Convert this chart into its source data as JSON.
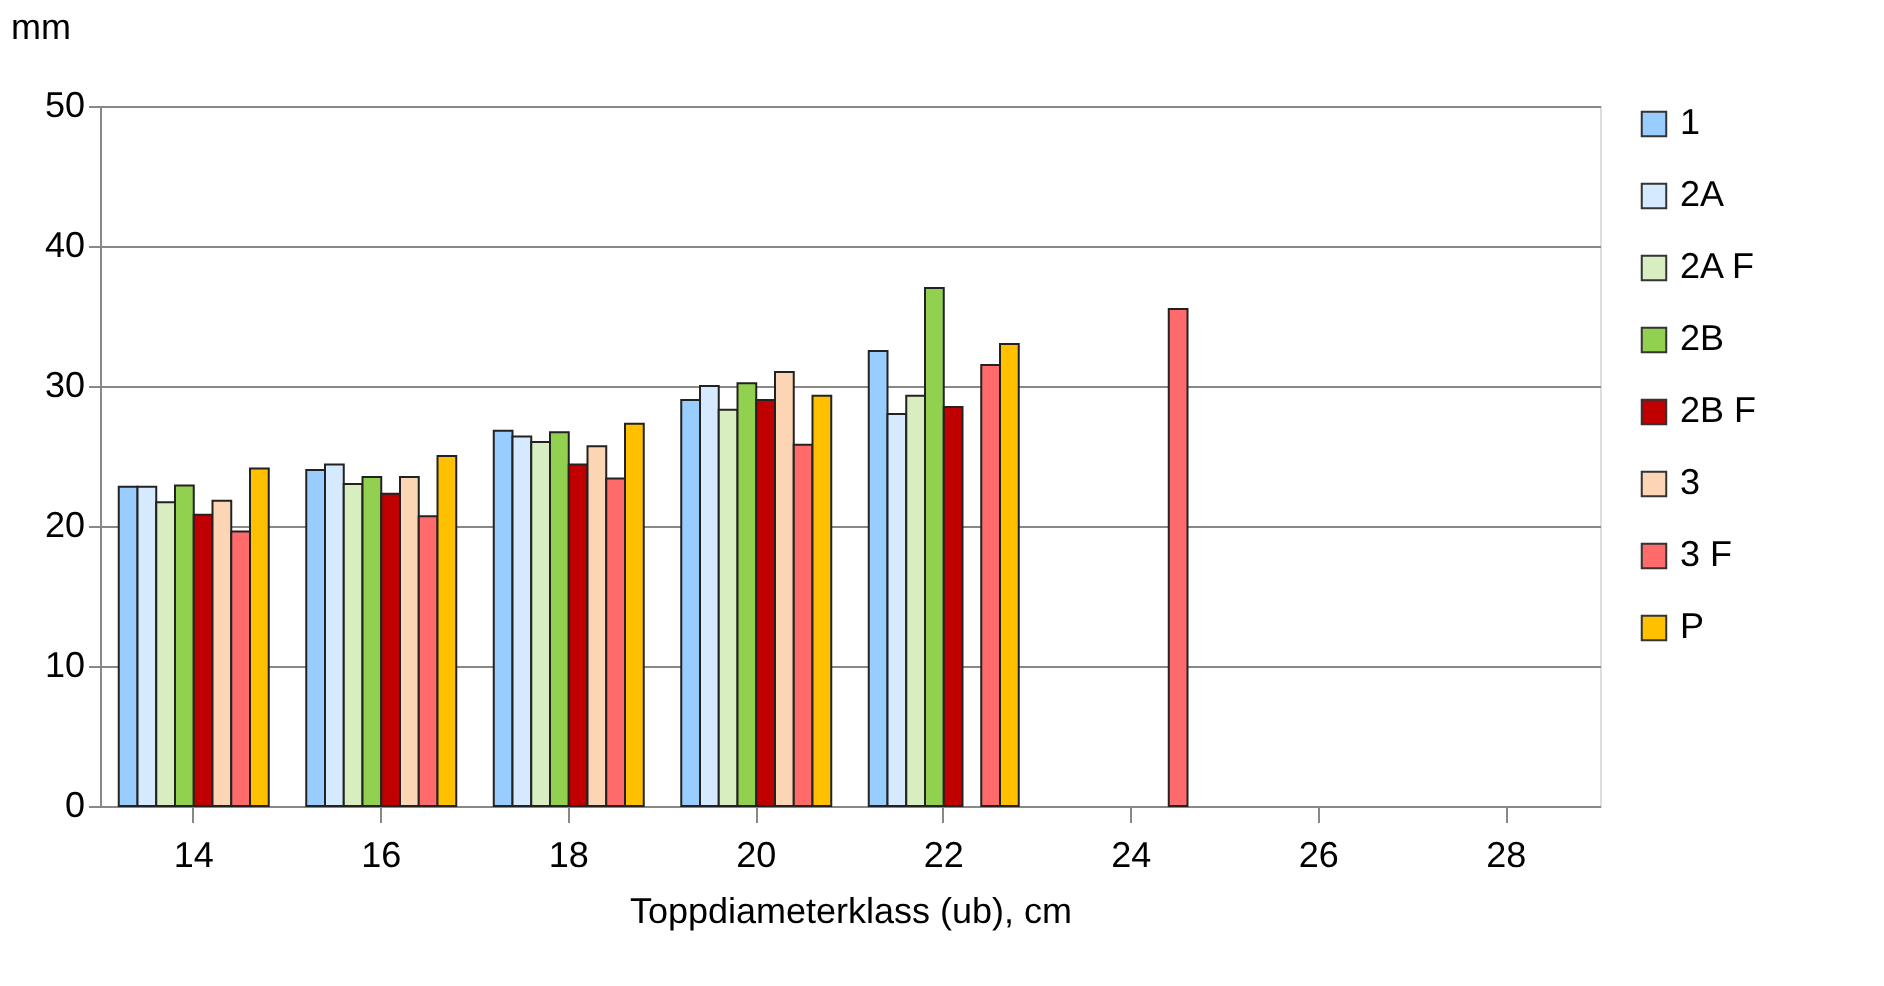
{
  "chart_data": {
    "type": "bar",
    "xlabel": "Toppdiameterklass (ub), cm",
    "ylabel": "mm",
    "categories": [
      "14",
      "16",
      "18",
      "20",
      "22",
      "24",
      "26",
      "28"
    ],
    "series": [
      {
        "name": "1",
        "color": "#99ccff",
        "values": [
          22.8,
          24.0,
          26.8,
          29.0,
          32.5,
          null,
          null,
          null
        ]
      },
      {
        "name": "2A",
        "color": "#d6eaff",
        "values": [
          22.8,
          24.4,
          26.4,
          30.0,
          28.0,
          null,
          null,
          null
        ]
      },
      {
        "name": "2A F",
        "color": "#d8eec0",
        "values": [
          21.7,
          23.0,
          26.0,
          28.3,
          29.3,
          null,
          null,
          null
        ]
      },
      {
        "name": "2B",
        "color": "#92d050",
        "values": [
          22.9,
          23.5,
          26.7,
          30.2,
          37.0,
          null,
          null,
          null
        ]
      },
      {
        "name": "2B F",
        "color": "#c00000",
        "values": [
          20.8,
          22.3,
          24.4,
          29.0,
          28.5,
          null,
          null,
          null
        ]
      },
      {
        "name": "3",
        "color": "#fcd5b5",
        "values": [
          21.8,
          23.5,
          25.7,
          31.0,
          null,
          null,
          null,
          null
        ]
      },
      {
        "name": "3 F",
        "color": "#ff6b6b",
        "values": [
          19.6,
          20.7,
          23.4,
          25.8,
          31.5,
          35.5,
          null,
          null
        ]
      },
      {
        "name": "P",
        "color": "#ffc000",
        "values": [
          24.1,
          25.0,
          27.3,
          29.3,
          33.0,
          null,
          null,
          null
        ]
      }
    ],
    "ylim": [
      0,
      50
    ],
    "yticks": [
      0,
      10,
      20,
      30,
      40,
      50
    ],
    "grid": "y",
    "legend": "right"
  }
}
